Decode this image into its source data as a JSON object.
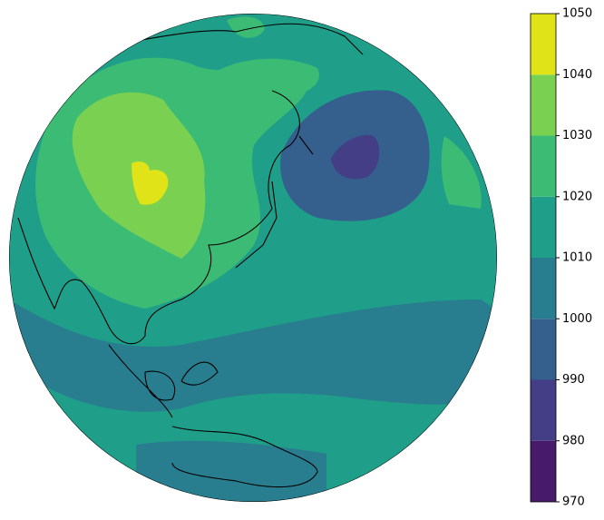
{
  "chart_data": {
    "type": "filled-contour-map",
    "levels": [
      970,
      980,
      990,
      1000,
      1010,
      1020,
      1030,
      1040,
      1050
    ],
    "colors": [
      "#481a6c",
      "#433e85",
      "#355f8d",
      "#287d8e",
      "#1f9e89",
      "#3cbb75",
      "#7ad151",
      "#dfe318"
    ],
    "clim": [
      970,
      1050
    ],
    "ticks": [
      970,
      980,
      990,
      1000,
      1010,
      1020,
      1030,
      1040,
      1050
    ]
  }
}
